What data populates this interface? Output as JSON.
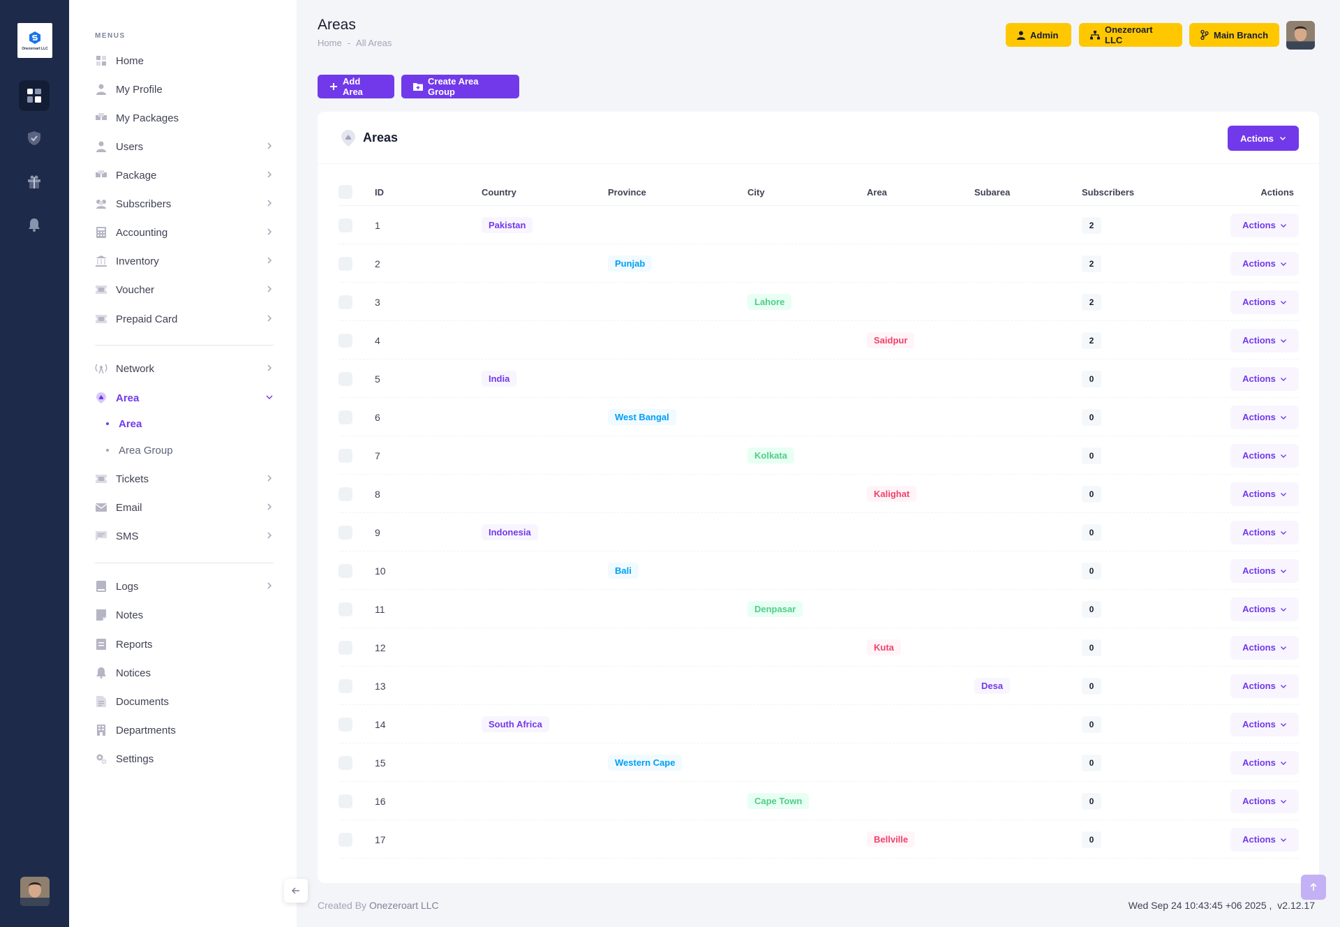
{
  "app": {
    "logo_text": "Onezeroart LLC",
    "accent": "#7239ea",
    "warning": "#ffc700",
    "rail_bg": "#1e2a4a"
  },
  "sidebar": {
    "menus_label": "MENUS",
    "items": [
      {
        "label": "Home",
        "icon": "home-icon"
      },
      {
        "label": "My Profile",
        "icon": "user-icon"
      },
      {
        "label": "My Packages",
        "icon": "packages-icon"
      },
      {
        "label": "Users",
        "icon": "user-icon"
      },
      {
        "label": "Package",
        "icon": "packages-icon"
      },
      {
        "label": "Subscribers",
        "icon": "people-icon"
      },
      {
        "label": "Accounting",
        "icon": "calculator-icon"
      },
      {
        "label": "Inventory",
        "icon": "bank-icon"
      },
      {
        "label": "Voucher",
        "icon": "ticket-icon"
      },
      {
        "label": "Prepaid Card",
        "icon": "ticket-icon"
      }
    ],
    "items2": [
      {
        "label": "Network",
        "icon": "antenna-icon"
      },
      {
        "label": "Area",
        "icon": "location-icon"
      }
    ],
    "area_sub": [
      {
        "label": "Area"
      },
      {
        "label": "Area Group"
      }
    ],
    "items3": [
      {
        "label": "Tickets",
        "icon": "ticket-icon"
      },
      {
        "label": "Email",
        "icon": "mail-icon"
      },
      {
        "label": "SMS",
        "icon": "message-icon"
      }
    ],
    "items4": [
      {
        "label": "Logs",
        "icon": "book-icon"
      },
      {
        "label": "Notes",
        "icon": "note-icon"
      },
      {
        "label": "Reports",
        "icon": "report-icon"
      },
      {
        "label": "Notices",
        "icon": "bell-icon"
      },
      {
        "label": "Documents",
        "icon": "document-icon"
      },
      {
        "label": "Departments",
        "icon": "building-icon"
      },
      {
        "label": "Settings",
        "icon": "gear-icon"
      }
    ]
  },
  "header": {
    "title": "Areas",
    "breadcrumb": [
      "Home",
      "-",
      "All Areas"
    ],
    "admin_label": "Admin",
    "company_label": "Onezeroart LLC",
    "branch_label": "Main Branch"
  },
  "toolbar": {
    "add_area": "Add Area",
    "create_group": "Create Area Group"
  },
  "card": {
    "title": "Areas",
    "actions_label": "Actions"
  },
  "table": {
    "columns": [
      "ID",
      "Country",
      "Province",
      "City",
      "Area",
      "Subarea",
      "Subscribers",
      "Actions"
    ],
    "row_action_label": "Actions",
    "rows": [
      {
        "id": "1",
        "country": "Pakistan",
        "province": "",
        "city": "",
        "area": "",
        "subarea": "",
        "subscribers": "2"
      },
      {
        "id": "2",
        "country": "",
        "province": "Punjab",
        "city": "",
        "area": "",
        "subarea": "",
        "subscribers": "2"
      },
      {
        "id": "3",
        "country": "",
        "province": "",
        "city": "Lahore",
        "area": "",
        "subarea": "",
        "subscribers": "2"
      },
      {
        "id": "4",
        "country": "",
        "province": "",
        "city": "",
        "area": "Saidpur",
        "subarea": "",
        "subscribers": "2"
      },
      {
        "id": "5",
        "country": "India",
        "province": "",
        "city": "",
        "area": "",
        "subarea": "",
        "subscribers": "0"
      },
      {
        "id": "6",
        "country": "",
        "province": "West Bangal",
        "city": "",
        "area": "",
        "subarea": "",
        "subscribers": "0"
      },
      {
        "id": "7",
        "country": "",
        "province": "",
        "city": "Kolkata",
        "area": "",
        "subarea": "",
        "subscribers": "0"
      },
      {
        "id": "8",
        "country": "",
        "province": "",
        "city": "",
        "area": "Kalighat",
        "subarea": "",
        "subscribers": "0"
      },
      {
        "id": "9",
        "country": "Indonesia",
        "province": "",
        "city": "",
        "area": "",
        "subarea": "",
        "subscribers": "0"
      },
      {
        "id": "10",
        "country": "",
        "province": "Bali",
        "city": "",
        "area": "",
        "subarea": "",
        "subscribers": "0"
      },
      {
        "id": "11",
        "country": "",
        "province": "",
        "city": "Denpasar",
        "area": "",
        "subarea": "",
        "subscribers": "0"
      },
      {
        "id": "12",
        "country": "",
        "province": "",
        "city": "",
        "area": "Kuta",
        "subarea": "",
        "subscribers": "0"
      },
      {
        "id": "13",
        "country": "",
        "province": "",
        "city": "",
        "area": "",
        "subarea": "Desa",
        "subscribers": "0"
      },
      {
        "id": "14",
        "country": "South Africa",
        "province": "",
        "city": "",
        "area": "",
        "subarea": "",
        "subscribers": "0"
      },
      {
        "id": "15",
        "country": "",
        "province": "Western Cape",
        "city": "",
        "area": "",
        "subarea": "",
        "subscribers": "0"
      },
      {
        "id": "16",
        "country": "",
        "province": "",
        "city": "Cape Town",
        "area": "",
        "subarea": "",
        "subscribers": "0"
      },
      {
        "id": "17",
        "country": "",
        "province": "",
        "city": "",
        "area": "Bellville",
        "subarea": "",
        "subscribers": "0"
      }
    ]
  },
  "footer": {
    "created_by": "Created By",
    "company": "Onezeroart LLC",
    "datetime": "Wed Sep 24 10:43:45 +06 2025 ,",
    "version": "v2.12.17"
  }
}
